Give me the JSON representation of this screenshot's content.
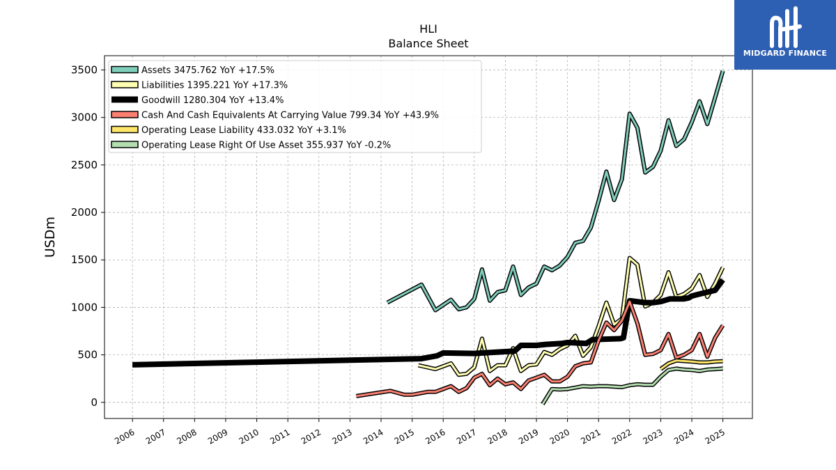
{
  "brand": {
    "name": "MIDGARD FINANCE",
    "primary": "#2d5fb3"
  },
  "chart_data": {
    "type": "line",
    "title": "HLI",
    "subtitle": "Balance  Sheet",
    "ylabel": "USDm",
    "xlabel": "",
    "ylim": [
      -170,
      3650
    ],
    "xlim": [
      2005.1,
      2025.95
    ],
    "x_ticks": [
      2006,
      2007,
      2008,
      2009,
      2010,
      2011,
      2012,
      2013,
      2014,
      2015,
      2016,
      2017,
      2018,
      2019,
      2020,
      2021,
      2022,
      2023,
      2024,
      2025
    ],
    "x_tick_labels": [
      "2006",
      "2007",
      "2008",
      "2009",
      "2010",
      "2011",
      "2012",
      "2013",
      "2014",
      "2015",
      "2016",
      "2017",
      "2018",
      "2019",
      "2020",
      "2021",
      "2022",
      "2023",
      "2024",
      "2025"
    ],
    "y_ticks": [
      0,
      500,
      1000,
      1500,
      2000,
      2500,
      3000,
      3500
    ],
    "y_tick_labels": [
      "0",
      "500",
      "1000",
      "1500",
      "2000",
      "2500",
      "3000",
      "3500"
    ],
    "grid": true,
    "legend_position": "top-left",
    "series": [
      {
        "name": "Assets  3475.762 YoY +17.5%",
        "color": "#7fcdbb",
        "width": 3,
        "points": [
          [
            2014.2,
            1050
          ],
          [
            2015.3,
            1240
          ],
          [
            2015.75,
            970
          ],
          [
            2016.25,
            1080
          ],
          [
            2016.5,
            980
          ],
          [
            2016.75,
            1000
          ],
          [
            2017.0,
            1090
          ],
          [
            2017.25,
            1400
          ],
          [
            2017.5,
            1070
          ],
          [
            2017.75,
            1160
          ],
          [
            2018.0,
            1180
          ],
          [
            2018.25,
            1430
          ],
          [
            2018.5,
            1130
          ],
          [
            2018.75,
            1210
          ],
          [
            2019.0,
            1250
          ],
          [
            2019.25,
            1430
          ],
          [
            2019.5,
            1390
          ],
          [
            2019.75,
            1440
          ],
          [
            2020.0,
            1530
          ],
          [
            2020.25,
            1680
          ],
          [
            2020.5,
            1700
          ],
          [
            2020.75,
            1840
          ],
          [
            2021.0,
            2120
          ],
          [
            2021.25,
            2430
          ],
          [
            2021.5,
            2130
          ],
          [
            2021.75,
            2350
          ],
          [
            2022.0,
            3040
          ],
          [
            2022.25,
            2890
          ],
          [
            2022.5,
            2420
          ],
          [
            2022.75,
            2480
          ],
          [
            2023.0,
            2650
          ],
          [
            2023.25,
            2970
          ],
          [
            2023.5,
            2700
          ],
          [
            2023.75,
            2770
          ],
          [
            2024.0,
            2950
          ],
          [
            2024.25,
            3170
          ],
          [
            2024.5,
            2930
          ],
          [
            2024.75,
            3210
          ],
          [
            2025.0,
            3490
          ]
        ]
      },
      {
        "name": "Liabilities  1395.221 YoY +17.3%",
        "color": "#ffffb3",
        "width": 3,
        "points": [
          [
            2015.2,
            390
          ],
          [
            2015.75,
            350
          ],
          [
            2016.25,
            410
          ],
          [
            2016.5,
            290
          ],
          [
            2016.75,
            300
          ],
          [
            2017.0,
            370
          ],
          [
            2017.25,
            670
          ],
          [
            2017.5,
            330
          ],
          [
            2017.75,
            390
          ],
          [
            2018.0,
            390
          ],
          [
            2018.25,
            570
          ],
          [
            2018.5,
            330
          ],
          [
            2018.75,
            390
          ],
          [
            2019.0,
            400
          ],
          [
            2019.25,
            530
          ],
          [
            2019.5,
            500
          ],
          [
            2019.75,
            560
          ],
          [
            2020.0,
            600
          ],
          [
            2020.25,
            700
          ],
          [
            2020.5,
            490
          ],
          [
            2020.75,
            580
          ],
          [
            2021.0,
            800
          ],
          [
            2021.25,
            1050
          ],
          [
            2021.5,
            820
          ],
          [
            2021.75,
            880
          ],
          [
            2022.0,
            1520
          ],
          [
            2022.25,
            1450
          ],
          [
            2022.5,
            1010
          ],
          [
            2022.75,
            1050
          ],
          [
            2023.0,
            1130
          ],
          [
            2023.25,
            1370
          ],
          [
            2023.5,
            1110
          ],
          [
            2023.75,
            1140
          ],
          [
            2024.0,
            1200
          ],
          [
            2024.25,
            1340
          ],
          [
            2024.5,
            1110
          ],
          [
            2024.75,
            1250
          ],
          [
            2025.0,
            1420
          ]
        ]
      },
      {
        "name": "Goodwill  1280.304 YoY +13.4%",
        "color": "#000000",
        "width": 8,
        "points": [
          [
            2006.0,
            395
          ],
          [
            2015.3,
            460
          ],
          [
            2015.8,
            490
          ],
          [
            2016.0,
            520
          ],
          [
            2017.0,
            515
          ],
          [
            2017.8,
            530
          ],
          [
            2018.3,
            540
          ],
          [
            2018.5,
            600
          ],
          [
            2019.0,
            600
          ],
          [
            2019.3,
            610
          ],
          [
            2019.8,
            620
          ],
          [
            2020.0,
            630
          ],
          [
            2020.6,
            620
          ],
          [
            2020.8,
            660
          ],
          [
            2021.7,
            670
          ],
          [
            2021.8,
            680
          ],
          [
            2022.0,
            1070
          ],
          [
            2022.5,
            1050
          ],
          [
            2022.75,
            1050
          ],
          [
            2023.0,
            1060
          ],
          [
            2023.3,
            1090
          ],
          [
            2023.75,
            1090
          ],
          [
            2023.9,
            1100
          ],
          [
            2024.0,
            1120
          ],
          [
            2024.25,
            1140
          ],
          [
            2024.5,
            1160
          ],
          [
            2024.75,
            1180
          ],
          [
            2025.0,
            1290
          ]
        ]
      },
      {
        "name": "Cash And Cash Equivalents At Carrying Value  799.34 YoY +43.9%",
        "color": "#fb8072",
        "width": 3,
        "points": [
          [
            2013.2,
            65
          ],
          [
            2014.3,
            120
          ],
          [
            2014.75,
            80
          ],
          [
            2015.0,
            80
          ],
          [
            2015.5,
            110
          ],
          [
            2015.75,
            110
          ],
          [
            2016.25,
            170
          ],
          [
            2016.5,
            110
          ],
          [
            2016.75,
            150
          ],
          [
            2017.0,
            260
          ],
          [
            2017.25,
            300
          ],
          [
            2017.5,
            180
          ],
          [
            2017.75,
            250
          ],
          [
            2018.0,
            190
          ],
          [
            2018.25,
            210
          ],
          [
            2018.5,
            140
          ],
          [
            2018.75,
            230
          ],
          [
            2019.0,
            260
          ],
          [
            2019.25,
            290
          ],
          [
            2019.5,
            220
          ],
          [
            2019.75,
            220
          ],
          [
            2020.0,
            270
          ],
          [
            2020.25,
            380
          ],
          [
            2020.5,
            410
          ],
          [
            2020.75,
            420
          ],
          [
            2021.0,
            650
          ],
          [
            2021.25,
            840
          ],
          [
            2021.5,
            760
          ],
          [
            2021.75,
            860
          ],
          [
            2022.0,
            1060
          ],
          [
            2022.25,
            830
          ],
          [
            2022.5,
            500
          ],
          [
            2022.75,
            510
          ],
          [
            2023.0,
            550
          ],
          [
            2023.25,
            720
          ],
          [
            2023.5,
            470
          ],
          [
            2023.75,
            500
          ],
          [
            2024.0,
            550
          ],
          [
            2024.25,
            720
          ],
          [
            2024.5,
            480
          ],
          [
            2024.75,
            680
          ],
          [
            2025.0,
            810
          ]
        ]
      },
      {
        "name": "Operating Lease Liability  433.032 YoY +3.1%",
        "color": "#fde56a",
        "width": 3,
        "points": [
          [
            2023.0,
            350
          ],
          [
            2023.25,
            410
          ],
          [
            2023.5,
            440
          ],
          [
            2023.75,
            435
          ],
          [
            2024.0,
            430
          ],
          [
            2024.25,
            420
          ],
          [
            2024.5,
            420
          ],
          [
            2024.75,
            430
          ],
          [
            2025.0,
            433
          ]
        ]
      },
      {
        "name": "Operating Lease Right Of Use Asset  355.937 YoY -0.2%",
        "color": "#b3deb0",
        "width": 3,
        "points": [
          [
            2019.2,
            -20
          ],
          [
            2019.5,
            140
          ],
          [
            2019.75,
            135
          ],
          [
            2020.0,
            140
          ],
          [
            2020.25,
            155
          ],
          [
            2020.5,
            170
          ],
          [
            2020.75,
            165
          ],
          [
            2021.0,
            170
          ],
          [
            2021.25,
            170
          ],
          [
            2021.5,
            165
          ],
          [
            2021.75,
            160
          ],
          [
            2022.0,
            180
          ],
          [
            2022.25,
            190
          ],
          [
            2022.5,
            185
          ],
          [
            2022.75,
            185
          ],
          [
            2023.0,
            270
          ],
          [
            2023.25,
            340
          ],
          [
            2023.5,
            355
          ],
          [
            2023.75,
            345
          ],
          [
            2024.0,
            340
          ],
          [
            2024.25,
            330
          ],
          [
            2024.5,
            345
          ],
          [
            2024.75,
            350
          ],
          [
            2025.0,
            356
          ]
        ]
      }
    ]
  }
}
